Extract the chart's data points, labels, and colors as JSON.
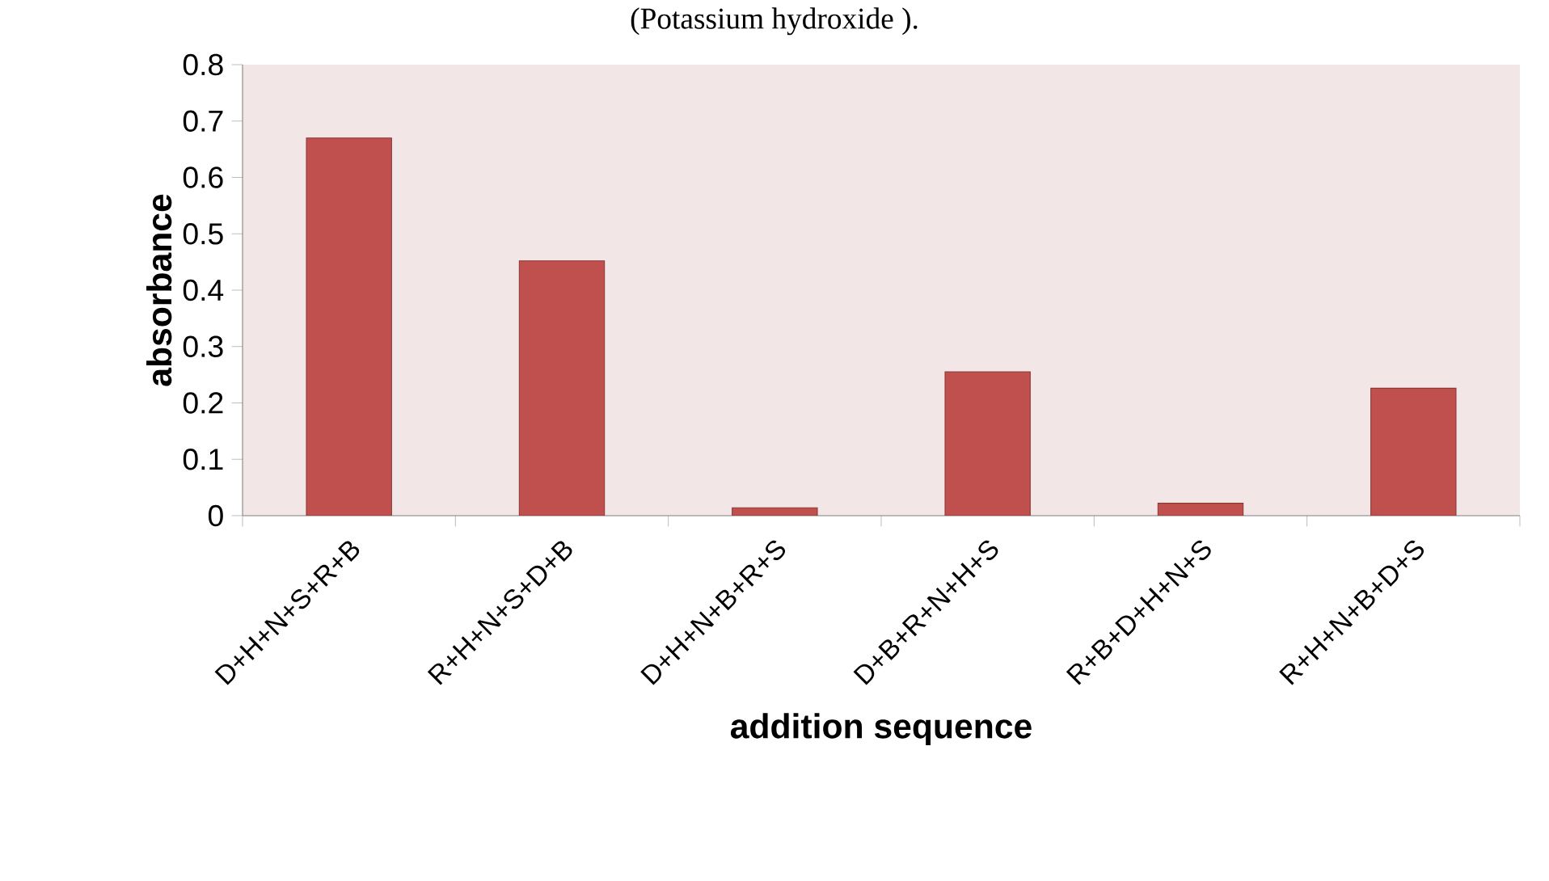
{
  "chart_data": {
    "type": "bar",
    "annotations": [
      "(Potassium hydroxide )."
    ],
    "xlabel": "addition sequence",
    "ylabel": "absorbance",
    "categories": [
      "D+H+N+S+R+B",
      "R+H+N+S+D+B",
      "D+H+N+B+R+S",
      "D+B+R+N+H+S",
      "R+B+D+H+N+S",
      "R+H+N+B+D+S"
    ],
    "values": [
      0.67,
      0.452,
      0.014,
      0.255,
      0.022,
      0.226
    ],
    "color": "#c0504d",
    "ylim": [
      0,
      0.8
    ],
    "yticks": [
      0,
      0.1,
      0.2,
      0.3,
      0.4,
      0.5,
      0.6,
      0.7,
      0.8
    ],
    "grid": false
  }
}
